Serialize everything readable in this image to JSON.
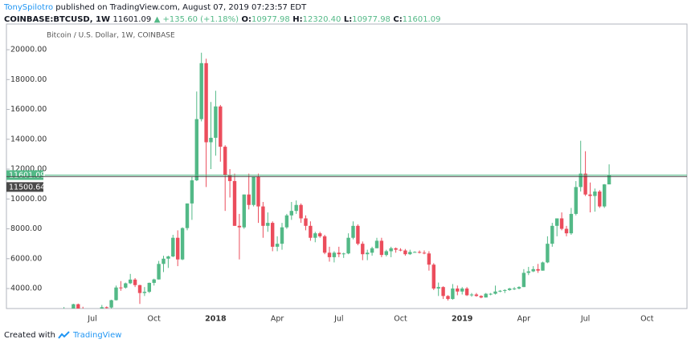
{
  "header": {
    "author": "TonySpilotro",
    "published": "published on TradingView.com, August 07, 2019 07:23:57 EDT",
    "symbol": "COINBASE:BTCUSD, 1W",
    "price": "11601.09",
    "change": "▲ +135.60 (+1.18%)",
    "ohlc": [
      {
        "label": "O:",
        "value": "10977.98"
      },
      {
        "label": "H:",
        "value": "12320.40"
      },
      {
        "label": "L:",
        "value": "10977.98"
      },
      {
        "label": "C:",
        "value": "11601.09"
      }
    ]
  },
  "footer": {
    "text": "Created with",
    "brand": "TradingView"
  },
  "chart_data": {
    "type": "candlestick",
    "title": "Bitcoin / U.S. Dollar, 1W, COINBASE",
    "up_color": "#53b987",
    "down_color": "#eb4d5c",
    "categories": [
      null,
      null,
      null,
      null,
      null,
      null,
      null,
      "Jul",
      null,
      null,
      null,
      null,
      null,
      null,
      null,
      null,
      null,
      null,
      null,
      null,
      "Oct",
      null,
      null,
      null,
      null,
      null,
      null,
      null,
      null,
      null,
      null,
      null,
      null,
      "2018",
      null,
      null,
      null,
      null,
      null,
      null,
      null,
      null,
      null,
      null,
      null,
      null,
      "Apr",
      null,
      null,
      null,
      null,
      null,
      null,
      null,
      null,
      null,
      null,
      null,
      null,
      "Jul",
      null,
      null,
      null,
      null,
      null,
      null,
      null,
      null,
      null,
      null,
      null,
      null,
      "Oct",
      null,
      null,
      null,
      null,
      null,
      null,
      null,
      null,
      null,
      null,
      null,
      null,
      "2019",
      null,
      null,
      null,
      null,
      null,
      null,
      null,
      null,
      null,
      null,
      null,
      null,
      "Apr",
      null,
      null,
      null,
      null,
      null,
      null,
      null,
      null,
      null,
      null,
      null,
      null,
      "Jul",
      null,
      null,
      null,
      null,
      null,
      null,
      null,
      null,
      null,
      null,
      null,
      null,
      "Oct"
    ],
    "open": [
      1700,
      2050,
      2200,
      2530,
      2950,
      2600,
      2500,
      2500,
      2510,
      1930,
      2750,
      2730,
      3220,
      4070,
      4060,
      4350,
      4600,
      4230,
      3700,
      3780,
      4380,
      4610,
      5650,
      6000,
      6150,
      7400,
      5950,
      8050,
      9700,
      11250,
      15350,
      19100,
      13800,
      14100,
      16200,
      13500,
      11600,
      11200,
      8200,
      8100,
      10300,
      9600,
      11500,
      9500,
      8200,
      8400,
      6800,
      7000,
      8100,
      8900,
      9200,
      9600,
      8700,
      8200,
      7400,
      7700,
      7500,
      6400,
      6100,
      6400,
      6300,
      6350,
      7400,
      8200,
      7000,
      6300,
      6400,
      6700,
      7200,
      6250,
      6500,
      6700,
      6600,
      6550,
      6300,
      6450,
      6450,
      6400,
      6350,
      5600,
      4000,
      4100,
      3500,
      3300,
      4000,
      3800,
      4000,
      3550,
      3600,
      3500,
      3400,
      3650,
      3650,
      3800,
      3850,
      3900,
      4000,
      4000,
      4100,
      5050,
      5150,
      5300,
      5200,
      5750,
      7000,
      8200,
      8700,
      8000,
      7700,
      9000,
      10800,
      11700,
      10300,
      10200,
      10500,
      9500,
      10977.98,
      null,
      null,
      null,
      null,
      null,
      null,
      null,
      null
    ],
    "high": [
      2200,
      2760,
      2550,
      2980,
      2990,
      2780,
      2600,
      2650,
      2600,
      2900,
      2800,
      3250,
      4200,
      4500,
      4400,
      4980,
      4700,
      4250,
      4100,
      4400,
      4660,
      5850,
      6200,
      6200,
      7600,
      7900,
      8100,
      9700,
      11500,
      17200,
      19800,
      19400,
      16500,
      17250,
      16300,
      13600,
      12000,
      11700,
      9000,
      10300,
      11700,
      11500,
      11700,
      9800,
      9100,
      8500,
      7500,
      8400,
      9000,
      9800,
      9900,
      9700,
      8900,
      8500,
      7800,
      7800,
      7600,
      6800,
      6500,
      6800,
      6400,
      7700,
      8500,
      8300,
      7150,
      6600,
      6800,
      7400,
      7400,
      6600,
      6800,
      6750,
      6700,
      6650,
      6600,
      6500,
      6550,
      6550,
      6500,
      5700,
      4400,
      4150,
      3550,
      4300,
      4200,
      4100,
      4100,
      3700,
      3700,
      3550,
      3700,
      3700,
      4200,
      3900,
      3950,
      4050,
      4100,
      4150,
      5300,
      5450,
      5500,
      5650,
      5800,
      7500,
      8400,
      8700,
      9100,
      8200,
      9400,
      11200,
      13900,
      13200,
      11100,
      10700,
      10600,
      11000,
      12320.4,
      null,
      null,
      null,
      null,
      null,
      null,
      null,
      null
    ],
    "low": [
      1700,
      1850,
      2100,
      2500,
      2200,
      2450,
      2300,
      2480,
      1840,
      1930,
      2450,
      2650,
      3200,
      3850,
      3990,
      4300,
      4100,
      2970,
      3500,
      3700,
      4200,
      4600,
      5100,
      5380,
      6100,
      5500,
      5900,
      7900,
      8600,
      11200,
      15200,
      10800,
      12000,
      12900,
      12500,
      9200,
      10100,
      8200,
      5950,
      8000,
      9300,
      9500,
      8400,
      7400,
      7800,
      6500,
      6500,
      6600,
      8000,
      8600,
      9000,
      8400,
      7900,
      7200,
      7100,
      7400,
      6300,
      5800,
      5750,
      6100,
      6050,
      6300,
      7300,
      6900,
      5900,
      5900,
      6200,
      6700,
      6100,
      6150,
      6100,
      6400,
      6500,
      6200,
      6250,
      6400,
      6350,
      6300,
      5200,
      3900,
      3500,
      3300,
      3200,
      3250,
      3550,
      3600,
      3500,
      3450,
      3450,
      3350,
      3400,
      3550,
      3600,
      3750,
      3700,
      3850,
      3900,
      3950,
      4100,
      4900,
      5100,
      5050,
      5200,
      5700,
      6800,
      7500,
      7900,
      7500,
      7600,
      8900,
      10500,
      10200,
      9100,
      9150,
      9400,
      9400,
      10977.98,
      null,
      null,
      null,
      null,
      null,
      null,
      null,
      null
    ],
    "close": [
      2050,
      2200,
      2530,
      2950,
      2600,
      2500,
      2500,
      2510,
      1930,
      2750,
      2730,
      3220,
      4070,
      4060,
      4350,
      4600,
      4230,
      3700,
      3780,
      4380,
      4610,
      5650,
      6000,
      6150,
      7400,
      5950,
      8050,
      9700,
      11250,
      15350,
      19100,
      13800,
      14100,
      16200,
      13500,
      11600,
      11200,
      8200,
      8100,
      10300,
      9600,
      11500,
      9500,
      8200,
      8400,
      6800,
      7000,
      8100,
      8900,
      9200,
      9600,
      8700,
      8200,
      7400,
      7700,
      7500,
      6400,
      6100,
      6400,
      6300,
      6350,
      7400,
      8200,
      7000,
      6300,
      6400,
      6700,
      7200,
      6250,
      6500,
      6700,
      6600,
      6550,
      6300,
      6450,
      6450,
      6400,
      6350,
      5600,
      4000,
      4100,
      3500,
      3300,
      4000,
      3800,
      4000,
      3550,
      3600,
      3500,
      3400,
      3650,
      3650,
      3800,
      3850,
      3900,
      4000,
      4000,
      4100,
      5050,
      5150,
      5300,
      5200,
      5750,
      7000,
      8200,
      8700,
      8000,
      7700,
      9000,
      10800,
      11700,
      10300,
      10200,
      10500,
      9500,
      10977.98,
      11601.09,
      null,
      null,
      null,
      null,
      null,
      null,
      null,
      null
    ],
    "ylim": [
      2660,
      21720
    ],
    "yticks": [
      {
        "value": 4000,
        "label": "4000.00"
      },
      {
        "value": 6000,
        "label": "6000.00"
      },
      {
        "value": 8000,
        "label": "8000.00"
      },
      {
        "value": 10000,
        "label": "10000.00"
      },
      {
        "value": 12000,
        "label": "12000.00"
      },
      {
        "value": 14000,
        "label": "14000.00"
      },
      {
        "value": 16000,
        "label": "16000.00"
      },
      {
        "value": 18000,
        "label": "18000.00"
      },
      {
        "value": 20000,
        "label": "20000.00"
      }
    ],
    "price_lines": [
      {
        "value": 11601.09,
        "label": "11601.09",
        "color": "#53b987"
      },
      {
        "value": 11500.64,
        "label": "11500.64",
        "color": "#4a4a4a"
      }
    ]
  }
}
